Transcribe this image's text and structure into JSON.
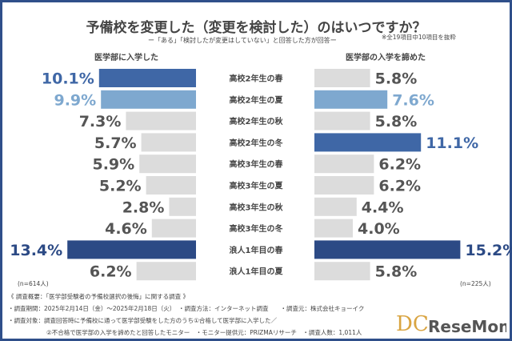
{
  "chart_data": {
    "type": "bar",
    "title": "予備校を変更した（変更を検討した）のはいつですか？",
    "subtitle": "ー「ある」「検討したが変更はしていない」と回答した方が回答ー",
    "note": "※全19項目中10項目を抜粋",
    "categories": [
      "高校2年生の春",
      "高校2年生の夏",
      "高校2年生の秋",
      "高校2年生の冬",
      "高校3年生の春",
      "高校3年生の夏",
      "高校3年生の秋",
      "高校3年生の冬",
      "浪人1年目の春",
      "浪人1年目の夏"
    ],
    "series": [
      {
        "name": "医学部に入学した",
        "values": [
          10.1,
          9.9,
          7.3,
          5.7,
          5.9,
          5.2,
          2.8,
          4.6,
          13.4,
          6.2
        ],
        "n": "(n=614人)",
        "side": "left"
      },
      {
        "name": "医学部の入学を諦めた",
        "values": [
          5.8,
          7.6,
          5.8,
          11.1,
          6.2,
          6.2,
          4.4,
          4.0,
          15.2,
          5.8
        ],
        "n": "(n=225人)",
        "side": "right"
      }
    ],
    "unit": "%",
    "colors": {
      "default": "#dcdcdc",
      "highlight_dark": "#3f67a6",
      "highlight_light": "#7ea8cf",
      "max": "#2c4a85",
      "text": "#555555"
    }
  },
  "footer": {
    "heading": "《 調査概要：「医学部受験者の予備校選択の後悔」に関する調査 》",
    "line1": "・調査期間：2025年2月14日（金）～2025年2月18日（火）　・調査方法：インターネット調査　　・調査元：株式会社キョーイク",
    "line2": "・調査対象：調査回答時に予備校に通って医学部受験をした方のうち①合格して医学部に入学した／",
    "line3": "②不合格で医学部の入学を諦めたと回答したモニター　・モニター提供元：PRIZMAリサーチ　・調査人数：1,011人",
    "logo": "ReseMom"
  }
}
